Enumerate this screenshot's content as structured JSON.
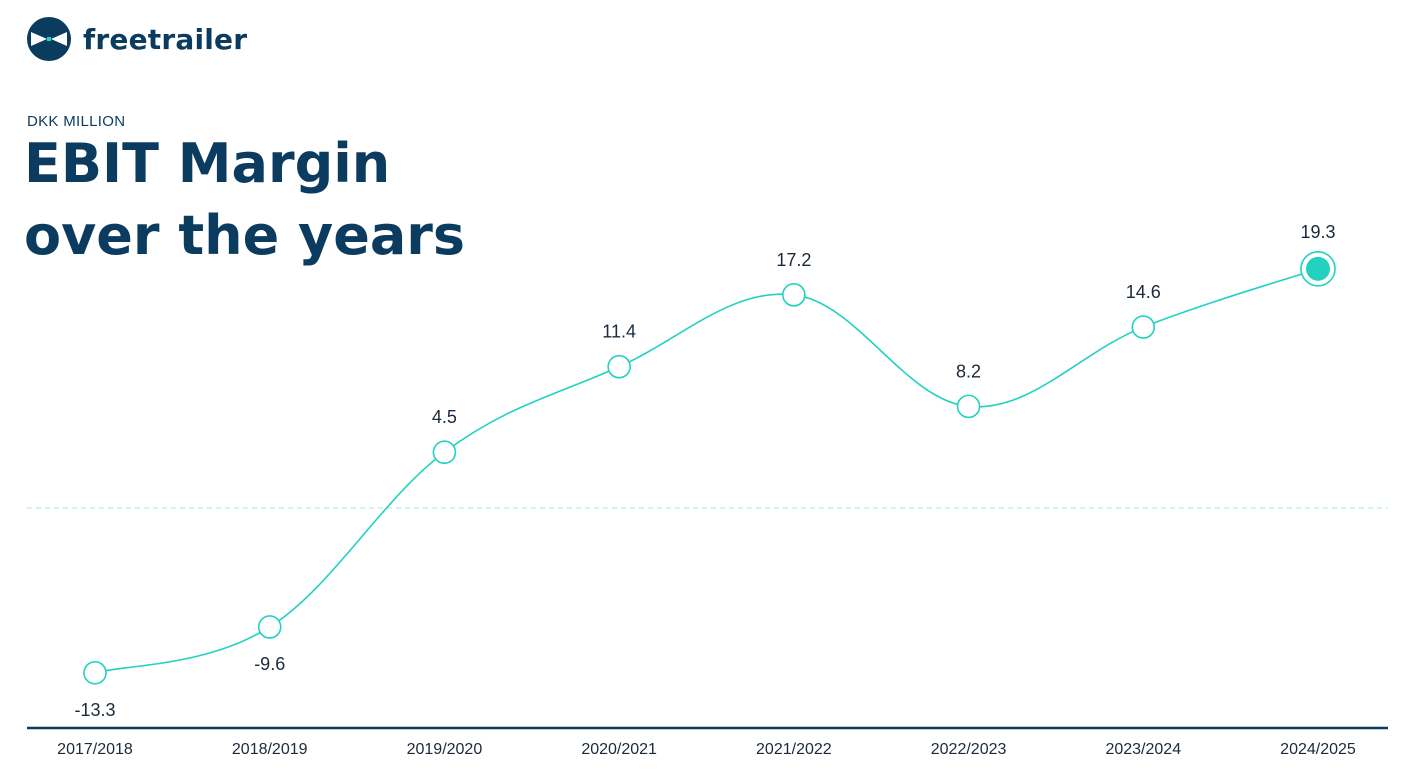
{
  "brand": {
    "name": "freetrailer",
    "colors": {
      "navy": "#0b3b5e",
      "accent": "#22d1c0"
    },
    "icon": "freetrailer-logo-icon"
  },
  "header": {
    "subtitle": "DKK MILLION",
    "title": "EBIT Margin over the years"
  },
  "chart_data": {
    "type": "line",
    "title": "EBIT Margin over the years",
    "subtitle": "DKK MILLION",
    "categories": [
      "2017/2018",
      "2018/2019",
      "2019/2020",
      "2020/2021",
      "2021/2022",
      "2022/2023",
      "2023/2024",
      "2024/2025"
    ],
    "series": [
      {
        "values": [
          -13.3,
          -9.6,
          4.5,
          11.4,
          17.2,
          8.2,
          14.6,
          19.3
        ]
      }
    ],
    "ylim": [
      -15,
      21
    ],
    "reference_line": 0,
    "grid": false,
    "legend": "none",
    "highlight": "last point filled",
    "line_color": "#22d1c0",
    "axis_color": "#0b3b5e"
  }
}
